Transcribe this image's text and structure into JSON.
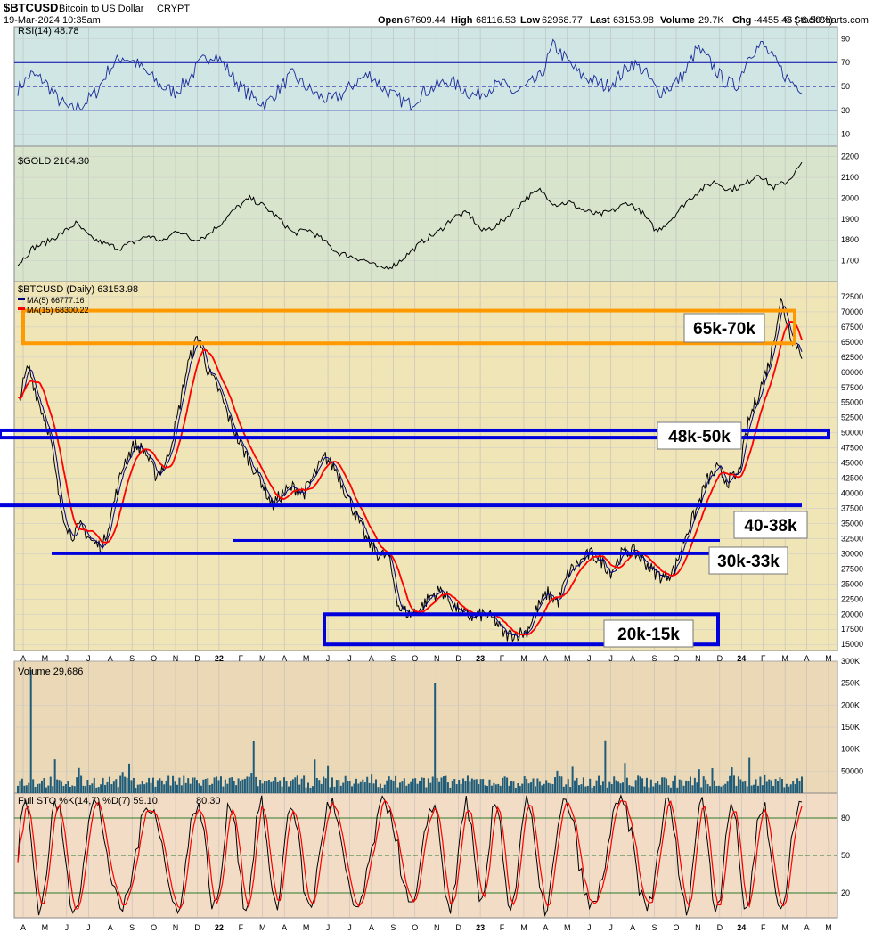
{
  "header": {
    "symbol": "$BTCUSD",
    "name": "Bitcoin to US Dollar",
    "exchange": "CRYPT",
    "datetime": "19-Mar-2024 10:35am",
    "quote": {
      "open_label": "Open",
      "open": "67609.44",
      "high_label": "High",
      "high": "68116.53",
      "low_label": "Low",
      "low": "62968.77",
      "last_label": "Last",
      "last": "63153.98",
      "volume_label": "Volume",
      "volume": "29.7K",
      "chg_label": "Chg",
      "chg": "-4455.46 (-6.59%)",
      "chg_color": "#cc0000"
    },
    "credit": "© StockCharts.com"
  },
  "colors": {
    "rsi_bg": "#cfe6e4",
    "gold_bg": "#d9e4cc",
    "price_bg": "#efe5b7",
    "volume_bg": "#ebd8b6",
    "sto_bg": "#f3dcc6",
    "price_line": "#000000",
    "ma5": "#000080",
    "ma15": "#ff0000",
    "zone_orange": "#ff9900",
    "zone_blue": "#0000dd",
    "volume_bar": "#1f5c7a"
  },
  "x_axis_labels": [
    "A",
    "M",
    "J",
    "J",
    "A",
    "S",
    "O",
    "N",
    "D",
    "22",
    "F",
    "M",
    "A",
    "M",
    "J",
    "J",
    "A",
    "S",
    "O",
    "N",
    "D",
    "23",
    "F",
    "M",
    "A",
    "M",
    "J",
    "J",
    "A",
    "S",
    "O",
    "N",
    "D",
    "24",
    "F",
    "M",
    "A",
    "M"
  ],
  "chart_data": [
    {
      "panel": "rsi",
      "type": "line",
      "title": "RSI(14) 48.78",
      "ylim": [
        0,
        100
      ],
      "yticks": [
        "90",
        "70",
        "50",
        "30",
        "10"
      ],
      "reference_lines": [
        70,
        50,
        30
      ],
      "series": [
        {
          "values": [
            48,
            60,
            55,
            40,
            30,
            35,
            45,
            65,
            75,
            70,
            60,
            50,
            45,
            55,
            70,
            78,
            65,
            50,
            40,
            35,
            48,
            60,
            50,
            42,
            38,
            45,
            55,
            60,
            48,
            40,
            35,
            45,
            50,
            55,
            48,
            42,
            48,
            52,
            45,
            50,
            58,
            85,
            72,
            60,
            55,
            50,
            58,
            70,
            62,
            45,
            50,
            60,
            82,
            70,
            55,
            50,
            78,
            85,
            70,
            55,
            49
          ]
        }
      ]
    },
    {
      "panel": "gold",
      "type": "line",
      "title": "$GOLD 2164.30",
      "ylim": [
        1600,
        2250
      ],
      "yticks": [
        "2200",
        "2100",
        "2000",
        "1900",
        "1800",
        "1700"
      ],
      "series": [
        {
          "values": [
            1680,
            1760,
            1790,
            1830,
            1880,
            1810,
            1780,
            1760,
            1790,
            1820,
            1790,
            1850,
            1800,
            1820,
            1880,
            1950,
            2000,
            1960,
            1900,
            1830,
            1850,
            1800,
            1740,
            1720,
            1700,
            1660,
            1680,
            1740,
            1800,
            1840,
            1910,
            1930,
            1840,
            1870,
            1930,
            2000,
            2040,
            1970,
            1980,
            1940,
            1920,
            1940,
            1980,
            1930,
            1840,
            1900,
            1980,
            2040,
            2080,
            2040,
            2060,
            2120,
            2050,
            2080,
            2164
          ]
        }
      ]
    },
    {
      "panel": "price",
      "type": "line",
      "title": "$BTCUSD (Daily) 63153.98",
      "ylim": [
        14000,
        75000
      ],
      "yticks": [
        "72500",
        "70000",
        "67500",
        "65000",
        "62500",
        "60000",
        "57500",
        "55000",
        "52500",
        "50000",
        "47500",
        "45000",
        "42500",
        "40000",
        "37500",
        "35000",
        "32500",
        "30000",
        "27500",
        "25000",
        "22500",
        "20000",
        "17500",
        "15000"
      ],
      "series": [
        {
          "name": "$BTCUSD (Daily) 63153.98",
          "values": [
            55000,
            61000,
            55000,
            50000,
            38000,
            33000,
            34500,
            32000,
            31000,
            38000,
            45000,
            48000,
            47000,
            43000,
            45000,
            52000,
            61000,
            66000,
            60000,
            57000,
            52000,
            48000,
            45000,
            42000,
            38000,
            40000,
            41000,
            40000,
            43000,
            46000,
            44000,
            40000,
            36000,
            32000,
            30000,
            29500,
            21000,
            20000,
            21000,
            23000,
            24000,
            21500,
            20000,
            19500,
            20000,
            19000,
            16500,
            16800,
            17000,
            21000,
            23500,
            22000,
            27000,
            28500,
            30000,
            29000,
            27000,
            30000,
            30500,
            29000,
            27000,
            26000,
            27500,
            33000,
            37000,
            42000,
            44000,
            42000,
            43000,
            52000,
            57000,
            62000,
            72000,
            66000,
            63154
          ]
        },
        {
          "name": "MA(5) 66777.16",
          "values": []
        },
        {
          "name": "MA(15) 68300.22",
          "values": []
        }
      ],
      "annotations": [
        {
          "label": "65k-70k",
          "range": [
            64800,
            70200
          ],
          "color": "#ff9900"
        },
        {
          "label": "48k-50k",
          "line": 49500,
          "color": "#0000dd"
        },
        {
          "label": "40-38k",
          "line": 38000,
          "color": "#0000dd"
        },
        {
          "label": "30k-33k",
          "range": [
            30000,
            32200
          ],
          "color": "#0000dd"
        },
        {
          "label": "20k-15k",
          "range": [
            15000,
            20000
          ],
          "color": "#0000dd"
        }
      ]
    },
    {
      "panel": "volume",
      "type": "bar",
      "title": "Volume 29,686",
      "yticks": [
        "300K",
        "250K",
        "200K",
        "150K",
        "100K",
        "50000"
      ],
      "ylim": [
        0,
        300000
      ],
      "spikes": [
        {
          "month_index": 1,
          "value": 280000
        },
        {
          "month_index": 18,
          "value": 118000
        },
        {
          "month_index": 32,
          "value": 250000
        },
        {
          "month_index": 45,
          "value": 120000
        },
        {
          "month_index": 56,
          "value": 80000
        }
      ]
    },
    {
      "panel": "stochastic",
      "type": "line",
      "title": "Full STO %K(14,7) %D(7) 59.10,",
      "title_value_2": "80.30",
      "ylim": [
        0,
        100
      ],
      "yticks": [
        "80",
        "50",
        "20"
      ],
      "reference_lines": [
        80,
        50,
        20
      ],
      "series": [
        {
          "name": "%K",
          "values": []
        },
        {
          "name": "%D",
          "values": []
        }
      ]
    }
  ]
}
